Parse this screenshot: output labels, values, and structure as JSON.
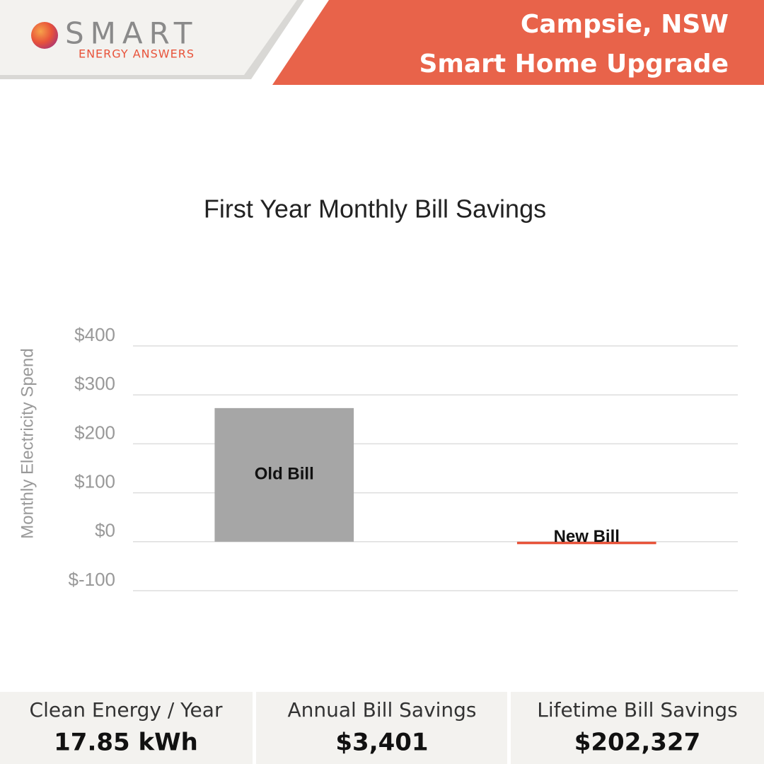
{
  "header": {
    "logo_title": "SMART",
    "logo_subtitle": "ENERGY ANSWERS",
    "location": "Campsie, NSW",
    "project": "Smart Home Upgrade"
  },
  "chart_data": {
    "type": "bar",
    "title": "First Year Monthly Bill Savings",
    "ylabel": "Monthly Electricity Spend",
    "categories": [
      "Old Bill",
      "New Bill"
    ],
    "values": [
      273,
      -5
    ],
    "colors": [
      "#a6a6a6",
      "#e8533a"
    ],
    "ylim": [
      -100,
      400
    ],
    "yticks": [
      {
        "value": -100,
        "label": "$-100"
      },
      {
        "value": 0,
        "label": "$0"
      },
      {
        "value": 100,
        "label": "$100"
      },
      {
        "value": 200,
        "label": "$200"
      },
      {
        "value": 300,
        "label": "$300"
      },
      {
        "value": 400,
        "label": "$400"
      }
    ],
    "grid": true
  },
  "stats": [
    {
      "label": "Clean Energy / Year",
      "value": "17.85 kWh"
    },
    {
      "label": "Annual Bill Savings",
      "value": "$3,401"
    },
    {
      "label": "Lifetime Bill Savings",
      "value": "$202,327"
    }
  ]
}
